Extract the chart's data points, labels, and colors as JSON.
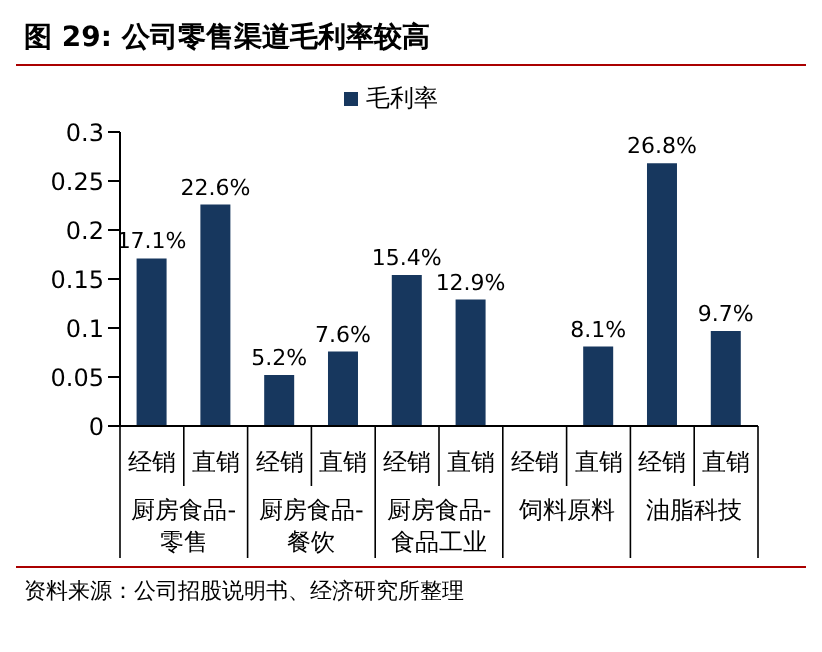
{
  "chart_data": {
    "type": "bar",
    "title": "图 29: 公司零售渠道毛利率较高",
    "categories": [
      "经销",
      "直销",
      "经销",
      "直销",
      "经销",
      "直销",
      "经销",
      "直销",
      "经销",
      "直销"
    ],
    "series": [
      {
        "name": "毛利率",
        "color": "#17375e",
        "values": [
          0.171,
          0.226,
          0.052,
          0.076,
          0.154,
          0.129,
          null,
          0.081,
          0.268,
          0.097
        ],
        "value_labels": [
          "17.1%",
          "22.6%",
          "5.2%",
          "7.6%",
          "15.4%",
          "12.9%",
          null,
          "8.1%",
          "26.8%",
          "9.7%"
        ]
      }
    ],
    "ylim": [
      0,
      0.3
    ],
    "yticks": [
      0,
      0.05,
      0.1,
      0.15,
      0.2,
      0.25,
      0.3
    ],
    "grid": false,
    "legend": "top",
    "annotations": [
      "厨房食品-零售",
      "厨房食品-餐饮",
      "厨房食品-食品工业",
      "饲料原料",
      "油脂科技",
      "资料来源：公司招股说明书、经济研究所整理"
    ]
  }
}
